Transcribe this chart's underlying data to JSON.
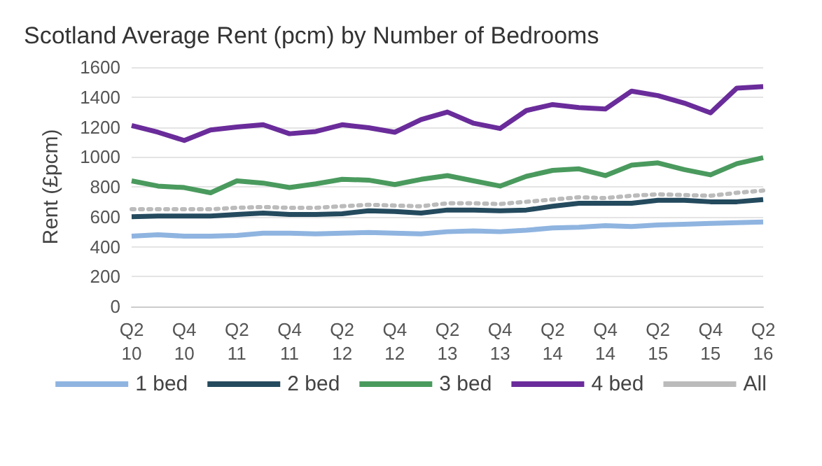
{
  "chart_data": {
    "type": "line",
    "title": "Scotland Average Rent (pcm) by Number of Bedrooms",
    "ylabel": "Rent (£pcm)",
    "categories": [
      "Q2\n10",
      null,
      "Q4\n10",
      null,
      "Q2\n11",
      null,
      "Q4\n11",
      null,
      "Q2\n12",
      null,
      "Q4\n12",
      null,
      "Q2\n13",
      null,
      "Q4\n13",
      null,
      "Q2\n14",
      null,
      "Q4\n14",
      null,
      "Q2\n15",
      null,
      "Q4\n15",
      null,
      "Q2\n16"
    ],
    "series": [
      {
        "name": "1 bed",
        "color": "#8fb4e0",
        "values": [
          470,
          480,
          470,
          470,
          475,
          490,
          490,
          485,
          490,
          495,
          490,
          485,
          500,
          505,
          500,
          510,
          525,
          530,
          540,
          535,
          545,
          550,
          555,
          560,
          565
        ]
      },
      {
        "name": "2 bed",
        "color": "#244a5e",
        "values": [
          600,
          605,
          605,
          605,
          615,
          625,
          615,
          615,
          620,
          640,
          635,
          625,
          645,
          645,
          640,
          645,
          670,
          690,
          690,
          690,
          710,
          710,
          700,
          700,
          715
        ]
      },
      {
        "name": "3 bed",
        "color": "#4a9a5e",
        "values": [
          840,
          805,
          795,
          760,
          840,
          825,
          795,
          820,
          850,
          845,
          815,
          850,
          875,
          840,
          805,
          870,
          910,
          920,
          875,
          945,
          960,
          915,
          880,
          955,
          995
        ]
      },
      {
        "name": "4 bed",
        "color": "#6a2c9a",
        "values": [
          1210,
          1165,
          1110,
          1180,
          1200,
          1215,
          1155,
          1170,
          1215,
          1195,
          1165,
          1250,
          1300,
          1225,
          1190,
          1310,
          1350,
          1330,
          1320,
          1440,
          1410,
          1360,
          1295,
          1460,
          1470
        ]
      },
      {
        "name": "All",
        "color": "#bbbbbb",
        "line_style": "dotted",
        "values": [
          650,
          650,
          650,
          650,
          660,
          665,
          660,
          660,
          670,
          680,
          675,
          670,
          690,
          690,
          685,
          700,
          715,
          730,
          725,
          740,
          750,
          745,
          740,
          760,
          775
        ]
      }
    ],
    "ylim": [
      0,
      1600
    ],
    "yticks": [
      0,
      200,
      400,
      600,
      800,
      1000,
      1200,
      1400,
      1600
    ],
    "grid": "y",
    "legend": "bottom",
    "marker": "none",
    "line_style": "solid"
  }
}
